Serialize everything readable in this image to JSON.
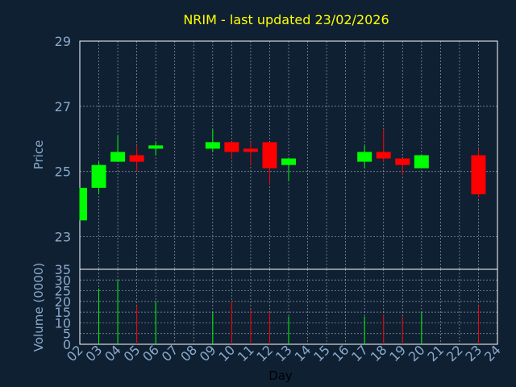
{
  "chart_data": {
    "type": "candlestick",
    "title": "NRIM - last updated 23/02/2026",
    "xlabel": "Day",
    "ylabel": "Price",
    "volume_label": "Volume (0000)",
    "days": [
      "02",
      "03",
      "04",
      "05",
      "06",
      "07",
      "08",
      "09",
      "10",
      "11",
      "12",
      "13",
      "14",
      "15",
      "16",
      "17",
      "18",
      "19",
      "20",
      "21",
      "22",
      "23",
      "24"
    ],
    "price_ticks": [
      "23",
      "25",
      "27",
      "29"
    ],
    "volume_ticks": [
      "0",
      "5",
      "10",
      "15",
      "20",
      "25",
      "30",
      "35"
    ],
    "price_range": [
      22,
      29
    ],
    "volume_range": [
      0,
      35
    ],
    "grid": true,
    "colors": {
      "up": "#00ff00",
      "down": "#ff0000",
      "background": "#0f2033",
      "title": "#ffff00",
      "axis_text": "#8aa9c8"
    },
    "candles": [
      {
        "day": "02",
        "open": 23.5,
        "high": 24.5,
        "low": 23.5,
        "close": 24.5,
        "volume": 0
      },
      {
        "day": "03",
        "open": 24.5,
        "high": 25.3,
        "low": 24.3,
        "close": 25.2,
        "volume": 26
      },
      {
        "day": "04",
        "open": 25.3,
        "high": 26.1,
        "low": 25.3,
        "close": 25.6,
        "volume": 30
      },
      {
        "day": "05",
        "open": 25.5,
        "high": 25.8,
        "low": 25.0,
        "close": 25.3,
        "volume": 18
      },
      {
        "day": "06",
        "open": 25.7,
        "high": 25.9,
        "low": 25.5,
        "close": 25.8,
        "volume": 20
      },
      {
        "day": "09",
        "open": 25.7,
        "high": 26.3,
        "low": 25.6,
        "close": 25.9,
        "volume": 15
      },
      {
        "day": "10",
        "open": 25.9,
        "high": 25.9,
        "low": 25.4,
        "close": 25.6,
        "volume": 20
      },
      {
        "day": "11",
        "open": 25.7,
        "high": 25.9,
        "low": 25.2,
        "close": 25.6,
        "volume": 16
      },
      {
        "day": "12",
        "open": 25.9,
        "high": 25.9,
        "low": 24.6,
        "close": 25.1,
        "volume": 15
      },
      {
        "day": "13",
        "open": 25.2,
        "high": 25.4,
        "low": 24.7,
        "close": 25.4,
        "volume": 13
      },
      {
        "day": "17",
        "open": 25.3,
        "high": 25.8,
        "low": 25.1,
        "close": 25.6,
        "volume": 13
      },
      {
        "day": "18",
        "open": 25.6,
        "high": 26.3,
        "low": 25.3,
        "close": 25.4,
        "volume": 14
      },
      {
        "day": "19",
        "open": 25.4,
        "high": 25.4,
        "low": 24.9,
        "close": 25.2,
        "volume": 13
      },
      {
        "day": "20",
        "open": 25.1,
        "high": 25.5,
        "low": 25.1,
        "close": 25.5,
        "volume": 15
      },
      {
        "day": "23",
        "open": 25.5,
        "high": 25.7,
        "low": 24.2,
        "close": 24.3,
        "volume": 18
      }
    ]
  }
}
